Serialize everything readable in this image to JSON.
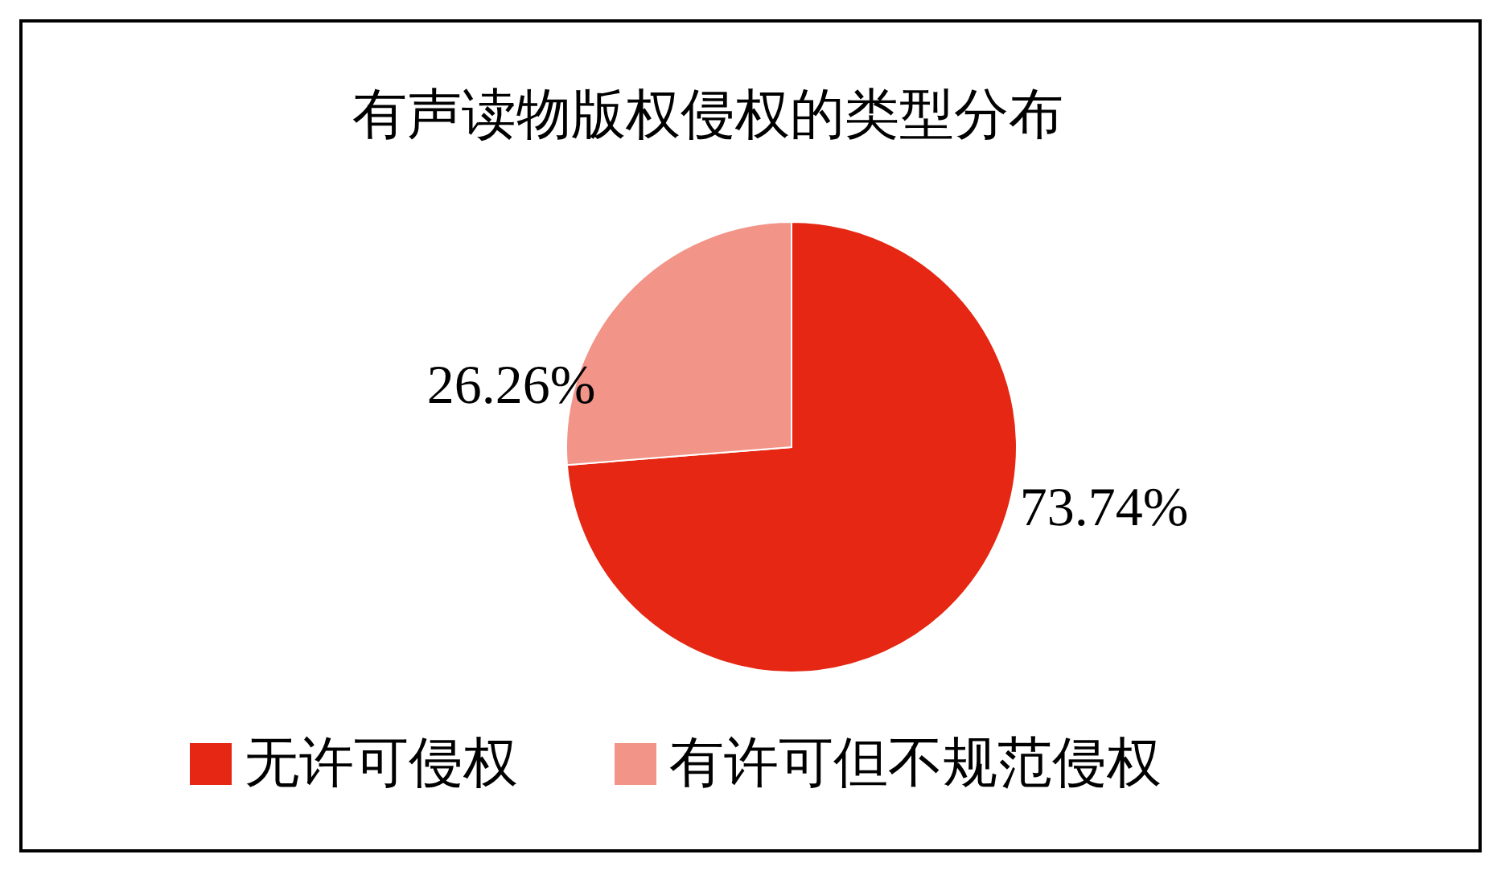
{
  "chart_data": {
    "type": "pie",
    "title": "有声读物版权侵权的类型分布",
    "categories": [
      "无许可侵权",
      "有许可但不规范侵权"
    ],
    "values": [
      73.74,
      26.26
    ],
    "colors": [
      "#e52713",
      "#f29488"
    ],
    "value_labels": [
      "73.74%",
      "26.26%"
    ],
    "legend": "bottom"
  }
}
